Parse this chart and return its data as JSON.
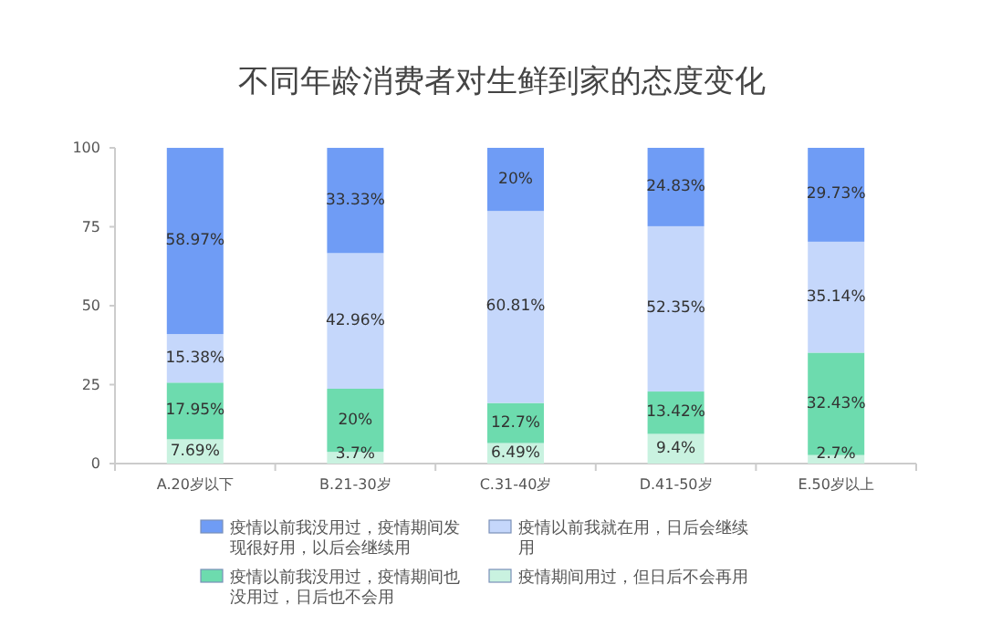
{
  "chart_data": {
    "type": "bar",
    "stacked": true,
    "title": "不同年龄消费者对生鲜到家的态度变化",
    "categories": [
      "A.20岁以下",
      "B.21-30岁",
      "C.31-40岁",
      "D.41-50岁",
      "E.50岁以上"
    ],
    "series": [
      {
        "name": "疫情期间用过，但日后不会再用",
        "color": "#c9f2e0",
        "values": [
          7.69,
          3.7,
          6.49,
          9.4,
          2.7
        ],
        "value_labels": [
          "7.69%",
          "3.7%",
          "6.49%",
          "9.4%",
          "2.7%"
        ]
      },
      {
        "name": "疫情以前我没用过，疫情期间也没用过，日后也不会用",
        "color": "#6ddbae",
        "values": [
          17.95,
          20,
          12.7,
          13.42,
          32.43
        ],
        "value_labels": [
          "17.95%",
          "20%",
          "12.7%",
          "13.42%",
          "32.43%"
        ]
      },
      {
        "name": "疫情以前我就在用，日后会继续用",
        "color": "#c5d7fb",
        "values": [
          15.38,
          42.96,
          60.81,
          52.35,
          35.14
        ],
        "value_labels": [
          "15.38%",
          "42.96%",
          "60.81%",
          "52.35%",
          "35.14%"
        ]
      },
      {
        "name": "疫情以前我没用过，疫情期间发现很好用，以后会继续用",
        "color": "#6f9cf5",
        "values": [
          58.97,
          33.33,
          20,
          24.83,
          29.73
        ],
        "value_labels": [
          "58.97%",
          "33.33%",
          "20%",
          "24.83%",
          "29.73%"
        ]
      }
    ],
    "ylim": [
      0,
      100
    ],
    "yticks": [
      0,
      25,
      50,
      75,
      100
    ],
    "legend": "bottom"
  }
}
